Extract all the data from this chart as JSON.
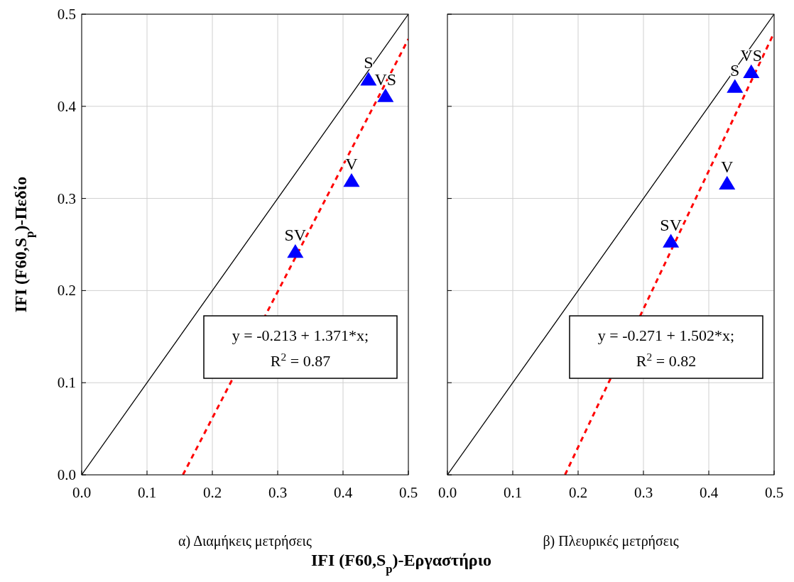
{
  "chart_data": [
    {
      "type": "scatter",
      "subtitle": "α) Διαμήκεις μετρήσεις",
      "xlabel": "IFI (F60,S$_{p}$)-Εργαστήριο",
      "ylabel": "IFI (F60,S$_{p}$)-Πεδίο",
      "xlim": [
        0,
        0.5
      ],
      "ylim": [
        0,
        0.5
      ],
      "tick_labels": true,
      "xticks": [
        {
          "value": 0,
          "label": "0.0"
        },
        {
          "value": 0.1,
          "label": "0.1"
        },
        {
          "value": 0.2,
          "label": "0.2"
        },
        {
          "value": 0.3,
          "label": "0.3"
        },
        {
          "value": 0.4,
          "label": "0.4"
        },
        {
          "value": 0.5,
          "label": "0.5"
        }
      ],
      "yticks": [
        {
          "value": 0,
          "label": "0.0"
        },
        {
          "value": 0.1,
          "label": "0.1"
        },
        {
          "value": 0.2,
          "label": "0.2"
        },
        {
          "value": 0.3,
          "label": "0.3"
        },
        {
          "value": 0.4,
          "label": "0.4"
        },
        {
          "value": 0.5,
          "label": "0.5"
        }
      ],
      "grid": true,
      "series": [
        {
          "type": "line",
          "x": [
            0,
            0.5
          ],
          "values": [
            0,
            0.5
          ],
          "color": "#000000",
          "line_style": "solid",
          "marker": "none"
        },
        {
          "type": "line",
          "x": [
            0.155,
            0.5
          ],
          "values": [
            0,
            0.473
          ],
          "color": "#ff0000",
          "line_style": "dashed",
          "marker": "none"
        },
        {
          "type": "scatter",
          "x": [
            0.439,
            0.465,
            0.413,
            0.327
          ],
          "values": [
            0.429,
            0.411,
            0.319,
            0.242
          ],
          "color": "#0000ff",
          "marker": "triangle"
        }
      ],
      "annotations": [
        {
          "text": "S",
          "x": 0.439,
          "y": 0.429
        },
        {
          "text": "VS",
          "x": 0.465,
          "y": 0.411
        },
        {
          "text": "V",
          "x": 0.413,
          "y": 0.319
        },
        {
          "text": "SV",
          "x": 0.327,
          "y": 0.242
        },
        "y = -0.213 + 1.371*x;",
        "R$^{2}$ = 0.87"
      ]
    },
    {
      "type": "scatter",
      "subtitle": "β) Πλευρικές μετρήσεις",
      "xlim": [
        0,
        0.5
      ],
      "ylim": [
        0,
        0.5
      ],
      "xticks": [
        {
          "value": 0,
          "label": "0.0"
        },
        {
          "value": 0.1,
          "label": "0.1"
        },
        {
          "value": 0.2,
          "label": "0.2"
        },
        {
          "value": 0.3,
          "label": "0.3"
        },
        {
          "value": 0.4,
          "label": "0.4"
        },
        {
          "value": 0.5,
          "label": "0.5"
        }
      ],
      "yticks": [
        {
          "value": 0,
          "label": null
        },
        {
          "value": 0.1,
          "label": null
        },
        {
          "value": 0.2,
          "label": null
        },
        {
          "value": 0.3,
          "label": null
        },
        {
          "value": 0.4,
          "label": null
        },
        {
          "value": 0.5,
          "label": null
        }
      ],
      "grid": true,
      "tick_labels": "x",
      "series": [
        {
          "type": "line",
          "x": [
            0,
            0.5
          ],
          "values": [
            0,
            0.5
          ],
          "color": "#000000",
          "line_style": "solid",
          "marker": "none"
        },
        {
          "type": "line",
          "x": [
            0.18,
            0.5
          ],
          "values": [
            0,
            0.48
          ],
          "color": "#ff0000",
          "line_style": "dashed",
          "marker": "none"
        },
        {
          "type": "scatter",
          "x": [
            0.44,
            0.465,
            0.428,
            0.342
          ],
          "values": [
            0.421,
            0.437,
            0.316,
            0.253
          ],
          "color": "#0000ff",
          "marker": "triangle"
        }
      ],
      "annotations": [
        {
          "text": "S",
          "x": 0.44,
          "y": 0.421
        },
        {
          "text": "VS",
          "x": 0.465,
          "y": 0.437
        },
        {
          "text": "V",
          "x": 0.428,
          "y": 0.316
        },
        {
          "text": "SV",
          "x": 0.342,
          "y": 0.253
        },
        "y = -0.271 + 1.502*x;",
        "R$^{2}$ = 0.82"
      ]
    }
  ]
}
